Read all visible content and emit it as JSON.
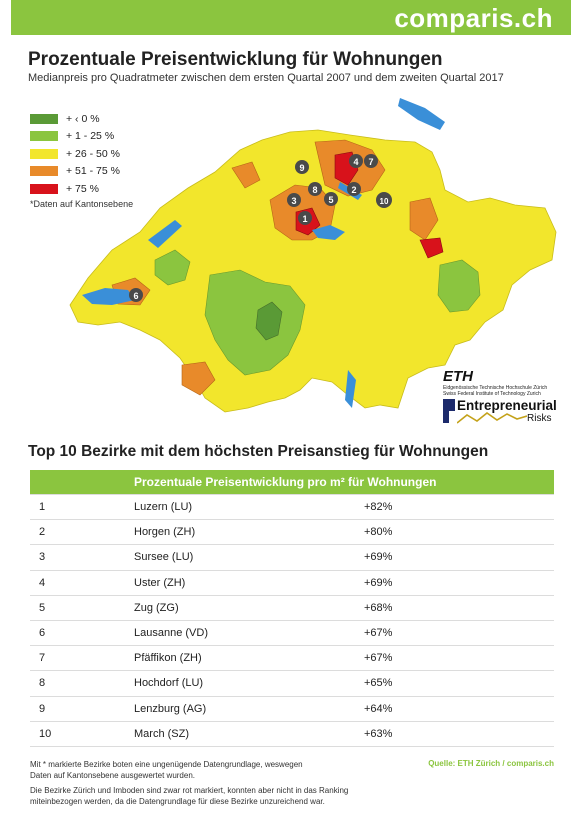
{
  "brand": {
    "name": "comparis.ch",
    "color": "#8bc53f"
  },
  "header": {
    "title": "Prozentuale Preisentwicklung für Wohnungen",
    "subtitle": "Medianpreis pro Quadratmeter zwischen dem ersten Quartal 2007 und dem zweiten Quartal 2017"
  },
  "legend": {
    "items": [
      {
        "label": "+ ‹ 0 %",
        "color": "#5a9a36"
      },
      {
        "label": "+ 1 - 25 %",
        "color": "#8bc53f"
      },
      {
        "label": "+ 26 - 50 %",
        "color": "#f2e62c"
      },
      {
        "label": "+ 51 - 75 %",
        "color": "#e88a2a"
      },
      {
        "label": "+ 75 %",
        "color": "#d8121b"
      }
    ],
    "note": "*Daten auf Kantonsebene"
  },
  "logos": {
    "eth": "ETH",
    "eth_line1": "Eidgenössische Technische Hochschule Zürich",
    "eth_line2": "Swiss Federal Institute of Technology Zurich",
    "er_name": "Entrepreneurial",
    "er_sub": "Risks"
  },
  "chart_data": {
    "type": "table",
    "title": "Top 10 Bezirke mit dem höchsten Preisanstieg für Wohnungen",
    "column_header": "Prozentuale Preisentwicklung pro m² für Wohnungen",
    "rows": [
      {
        "rank": "1",
        "district": "Luzern (LU)",
        "change": "+82%",
        "value": 82
      },
      {
        "rank": "2",
        "district": "Horgen (ZH)",
        "change": "+80%",
        "value": 80
      },
      {
        "rank": "3",
        "district": "Sursee (LU)",
        "change": "+69%",
        "value": 69
      },
      {
        "rank": "4",
        "district": "Uster (ZH)",
        "change": "+69%",
        "value": 69
      },
      {
        "rank": "5",
        "district": "Zug (ZG)",
        "change": "+68%",
        "value": 68
      },
      {
        "rank": "6",
        "district": "Lausanne (VD)",
        "change": "+67%",
        "value": 67
      },
      {
        "rank": "7",
        "district": "Pfäffikon (ZH)",
        "change": "+67%",
        "value": 67
      },
      {
        "rank": "8",
        "district": "Hochdorf (LU)",
        "change": "+65%",
        "value": 65
      },
      {
        "rank": "9",
        "district": "Lenzburg (AG)",
        "change": "+64%",
        "value": 64
      },
      {
        "rank": "10",
        "district": "March (SZ)",
        "change": "+63%",
        "value": 63
      }
    ]
  },
  "footer": {
    "note1_line1": "Mit * markierte Bezirke boten eine ungenügende Datengrundlage, weswegen",
    "note1_line2": "Daten auf Kantonsebene ausgewertet wurden.",
    "note2_line1": "Die Bezirke Zürich und Imboden sind zwar rot markiert, konnten aber nicht in das Ranking",
    "note2_line2": "miteinbezogen werden, da die Datengrundlage für diese Bezirke unzureichend war.",
    "source": "Quelle: ETH Zürich / comparis.ch"
  }
}
